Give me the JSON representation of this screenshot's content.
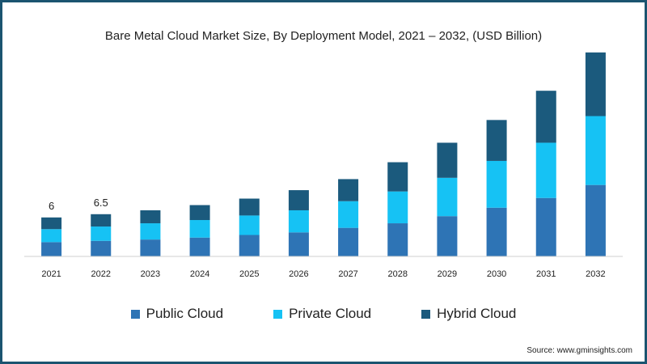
{
  "chart_data": {
    "type": "bar",
    "stacked": true,
    "title": "Bare Metal Cloud Market Size, By Deployment Model, 2021 – 2032, (USD Billion)",
    "xlabel": "",
    "ylabel": "",
    "categories": [
      "2021",
      "2022",
      "2023",
      "2024",
      "2025",
      "2026",
      "2027",
      "2028",
      "2029",
      "2030",
      "2031",
      "2032"
    ],
    "series": [
      {
        "name": "Public Cloud",
        "color": "#2e74b5",
        "values": [
          2.2,
          2.4,
          2.6,
          2.9,
          3.3,
          3.7,
          4.4,
          5.1,
          6.2,
          7.5,
          9.0,
          11.0
        ]
      },
      {
        "name": "Private Cloud",
        "color": "#16c2f4",
        "values": [
          2.0,
          2.2,
          2.5,
          2.7,
          3.0,
          3.4,
          4.1,
          4.9,
          5.9,
          7.2,
          8.5,
          10.6
        ]
      },
      {
        "name": "Hybrid Cloud",
        "color": "#1b5a7d",
        "values": [
          1.8,
          1.9,
          2.0,
          2.3,
          2.6,
          3.1,
          3.4,
          4.5,
          5.4,
          6.3,
          8.0,
          9.8
        ]
      }
    ],
    "data_labels": [
      "6",
      "6.5",
      "",
      "",
      "",
      "",
      "",
      "",
      "",
      "",
      "",
      ""
    ],
    "ylim": [
      0,
      32
    ],
    "grid": false,
    "legend_position": "bottom"
  },
  "source": "Source: www.gminsights.com"
}
